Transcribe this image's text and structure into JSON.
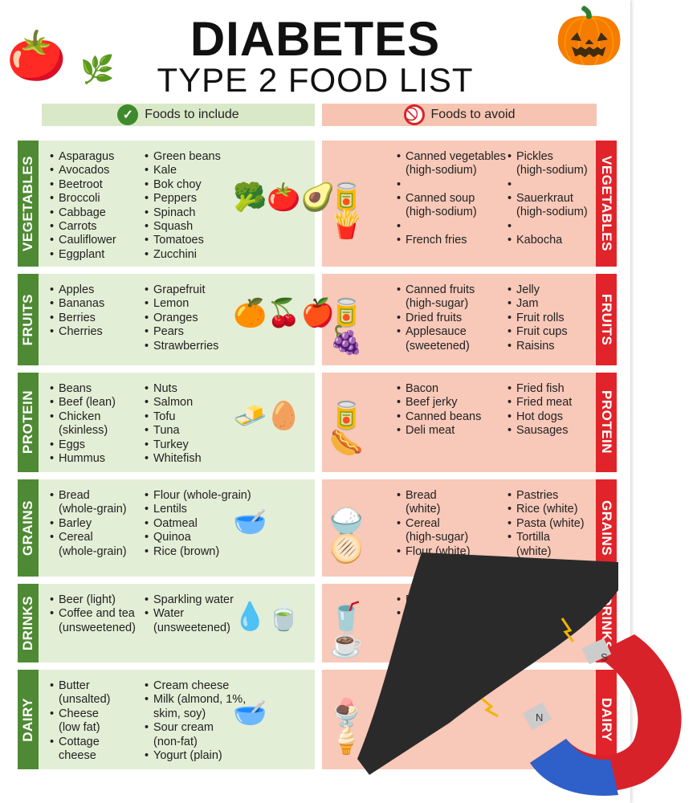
{
  "title": "DIABETES",
  "subtitle": "TYPE 2 FOOD LIST",
  "include_header": "Foods to include",
  "avoid_header": "Foods to avoid",
  "colors": {
    "include_bg": "#e3eed6",
    "include_label": "#4e8a34",
    "avoid_bg": "#f8c8b8",
    "avoid_label": "#e0242a"
  },
  "categories": [
    {
      "name": "VEGETABLES",
      "include": [
        [
          "Asparagus",
          "Avocados",
          "Beetroot",
          "Broccoli",
          "Cabbage",
          "Carrots",
          "Cauliflower",
          "Eggplant"
        ],
        [
          "Green beans",
          "Kale",
          "Bok choy",
          "Peppers",
          "Spinach",
          "Squash",
          "Tomatoes",
          "Zucchini"
        ]
      ],
      "avoid": [
        [
          "Canned vegetables\n(high-sodium)",
          "",
          "Canned soup\n(high-sodium)",
          "",
          "French fries"
        ],
        [
          "Pickles\n(high-sodium)",
          "",
          "Sauerkraut\n(high-sodium)",
          "",
          "Kabocha"
        ]
      ],
      "icons": [
        "🥦🍅🥑",
        "🥫🍟"
      ]
    },
    {
      "name": "FRUITS",
      "include": [
        [
          "Apples",
          "Bananas",
          "Berries",
          "Cherries"
        ],
        [
          "Grapefruit",
          "Lemon",
          "Oranges",
          "Pears",
          "Strawberries"
        ]
      ],
      "avoid": [
        [
          "Canned fruits\n(high-sugar)",
          "Dried fruits",
          "Applesauce\n(sweetened)"
        ],
        [
          "Jelly",
          "Jam",
          "Fruit rolls",
          "Fruit cups",
          "Raisins"
        ]
      ],
      "icons": [
        "🍊🍒🍎",
        "🥫🍇"
      ]
    },
    {
      "name": "PROTEIN",
      "include": [
        [
          "Beans",
          "Beef (lean)",
          "Chicken\n(skinless)",
          "Eggs",
          "Hummus"
        ],
        [
          "Nuts",
          "Salmon",
          "Tofu",
          "Tuna",
          "Turkey",
          "Whitefish"
        ]
      ],
      "avoid": [
        [
          "Bacon",
          "Beef jerky",
          "Canned beans",
          "Deli meat"
        ],
        [
          "Fried fish",
          "Fried meat",
          "Hot dogs",
          "Sausages"
        ]
      ],
      "icons": [
        "🧈🥚",
        "🥫🌭"
      ]
    },
    {
      "name": "GRAINS",
      "include": [
        [
          "Bread\n(whole-grain)",
          "Barley",
          "Cereal\n(whole-grain)"
        ],
        [
          "Flour (whole-grain)",
          "Lentils",
          "Oatmeal",
          "Quinoa",
          "Rice (brown)"
        ]
      ],
      "avoid": [
        [
          "Bread\n(white)",
          "Cereal\n(high-sugar)",
          "Flour (white)"
        ],
        [
          "Pastries",
          "Rice (white)",
          "Pasta (white)",
          "Tortilla\n(white)"
        ]
      ],
      "icons": [
        "🥣",
        "🍚🫓"
      ]
    },
    {
      "name": "DRINKS",
      "include": [
        [
          "Beer (light)",
          "Coffee and tea\n(unsweetened)"
        ],
        [
          "Sparkling water",
          "Water\n(unsweetened)"
        ]
      ],
      "avoid": [
        [
          "Beer (r",
          "Coffe\n(flav"
        ],
        []
      ],
      "icons": [
        "💧🍵",
        "🥤☕"
      ]
    },
    {
      "name": "DAIRY",
      "include": [
        [
          "Butter\n(unsalted)",
          "Cheese\n(low fat)",
          "Cottage\ncheese"
        ],
        [
          "Cream cheese",
          "Milk (almond, 1%,\nskim, soy)",
          "Sour cream\n(non-fat)",
          "Yogurt (plain)"
        ]
      ],
      "avoid": [
        [],
        []
      ],
      "icons": [
        "🥣",
        "🍨🍦"
      ]
    }
  ],
  "magnet": {
    "north": "N",
    "south": "S"
  }
}
